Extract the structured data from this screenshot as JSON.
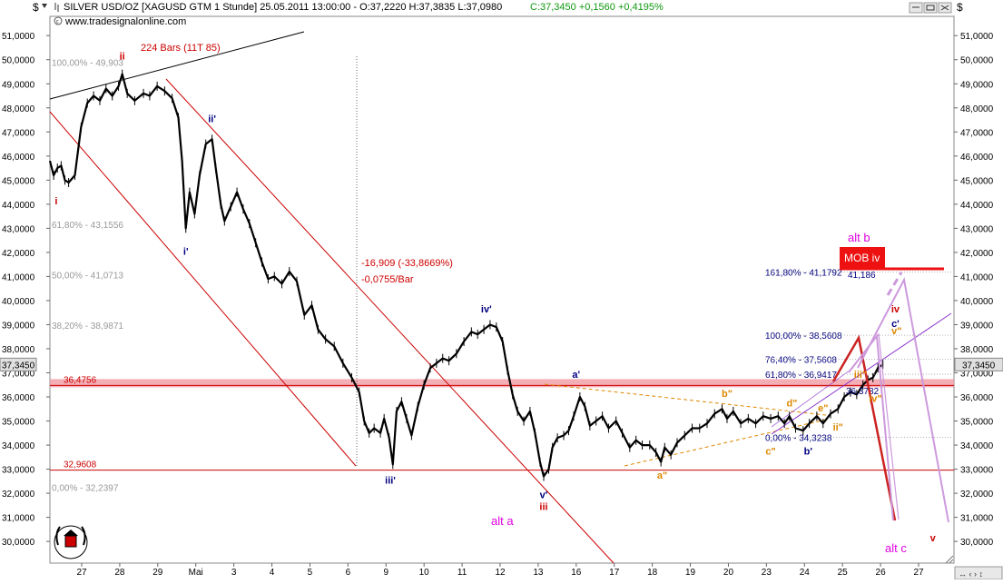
{
  "header": {
    "dollar_left": "$",
    "dollar_right": "$",
    "title": "SILVER USD/OZ [XAGUSD GTM  1 Stunde] 25.05.2011 13:00:00 - O:37,2220 H:37,3835 L:37,0980",
    "close_change": "C:37,3450 +0,1560 +0,4195%",
    "website": "www.tradesignalonline.com"
  },
  "colors": {
    "background": "#ffffff",
    "price": "#000000",
    "channel": "#cc0000",
    "fib": "#999999",
    "support": "#cc0000",
    "highlight_band": "#f2a0a8",
    "orange_wave": "#dd8800",
    "navy_wave": "#000080",
    "magenta": "#dd00dd",
    "violet": "#8833cc",
    "pink_projection": "#cc99dd",
    "mob_box": "#ee1111",
    "price_box_bg": "#e0e0e0"
  },
  "chart_data": {
    "type": "line",
    "y_axis": {
      "range": [
        29.1,
        51.8
      ],
      "ticks": [
        "51,0000",
        "50,0000",
        "49,0000",
        "48,0000",
        "47,0000",
        "46,0000",
        "45,0000",
        "44,0000",
        "43,0000",
        "42,0000",
        "41,0000",
        "40,0000",
        "39,0000",
        "38,0000",
        "37,0000",
        "36,0000",
        "35,0000",
        "34,0000",
        "33,0000",
        "32,0000",
        "31,0000",
        "30,0000"
      ],
      "current_price_label": "37,3450"
    },
    "x_axis": {
      "labels": [
        "27",
        "28",
        "29",
        "Mai",
        "3",
        "4",
        "5",
        "6",
        "9",
        "10",
        "11",
        "12",
        "13",
        "16",
        "17",
        "18",
        "19",
        "20",
        "23",
        "24",
        "25",
        "26",
        "27"
      ]
    },
    "series": [
      {
        "values": [
          [
            0,
            45.8
          ],
          [
            0.3,
            45.2
          ],
          [
            0.6,
            45.5
          ],
          [
            0.9,
            45.6
          ],
          [
            1.2,
            45.0
          ],
          [
            1.5,
            44.9
          ],
          [
            2.0,
            45.2
          ],
          [
            2.5,
            47.2
          ],
          [
            3.0,
            48.2
          ],
          [
            3.5,
            48.5
          ],
          [
            4.0,
            48.3
          ],
          [
            4.5,
            48.8
          ],
          [
            5.0,
            48.5
          ],
          [
            5.5,
            48.9
          ],
          [
            5.8,
            49.4
          ],
          [
            6.2,
            48.6
          ],
          [
            6.8,
            48.3
          ],
          [
            7.5,
            48.6
          ],
          [
            8.0,
            48.5
          ],
          [
            8.6,
            48.9
          ],
          [
            9.2,
            48.7
          ],
          [
            9.8,
            48.4
          ],
          [
            10.3,
            47.6
          ],
          [
            10.6,
            45.8
          ],
          [
            10.9,
            43.0
          ],
          [
            11.2,
            44.5
          ],
          [
            11.6,
            43.6
          ],
          [
            12.0,
            45.2
          ],
          [
            12.5,
            46.5
          ],
          [
            13.0,
            46.7
          ],
          [
            13.3,
            45.5
          ],
          [
            13.7,
            44.0
          ],
          [
            14.0,
            43.3
          ],
          [
            14.5,
            43.9
          ],
          [
            15.0,
            44.5
          ],
          [
            15.5,
            43.8
          ],
          [
            16.0,
            43.2
          ],
          [
            16.5,
            42.4
          ],
          [
            17.0,
            41.6
          ],
          [
            17.5,
            40.9
          ],
          [
            18.0,
            41.0
          ],
          [
            18.6,
            40.7
          ],
          [
            19.2,
            41.2
          ],
          [
            19.8,
            40.8
          ],
          [
            20.4,
            39.4
          ],
          [
            21.0,
            39.8
          ],
          [
            21.5,
            38.8
          ],
          [
            22.1,
            38.4
          ],
          [
            22.8,
            38.1
          ],
          [
            23.5,
            37.4
          ],
          [
            24.2,
            36.8
          ],
          [
            24.8,
            36.2
          ],
          [
            25.2,
            35.0
          ],
          [
            25.6,
            34.5
          ],
          [
            26.0,
            34.7
          ],
          [
            26.5,
            34.5
          ],
          [
            26.8,
            35.1
          ],
          [
            27.2,
            34.3
          ],
          [
            27.5,
            33.2
          ],
          [
            27.8,
            35.4
          ],
          [
            28.2,
            35.8
          ],
          [
            28.6,
            35.1
          ],
          [
            29.0,
            34.4
          ],
          [
            29.5,
            35.6
          ],
          [
            30.0,
            36.5
          ],
          [
            30.5,
            37.2
          ],
          [
            31.0,
            37.4
          ],
          [
            31.5,
            37.6
          ],
          [
            32.0,
            37.5
          ],
          [
            32.6,
            37.8
          ],
          [
            33.2,
            38.3
          ],
          [
            33.8,
            38.7
          ],
          [
            34.3,
            38.6
          ],
          [
            34.8,
            38.8
          ],
          [
            35.3,
            39.0
          ],
          [
            35.8,
            38.9
          ],
          [
            36.3,
            38.3
          ],
          [
            36.7,
            37.1
          ],
          [
            37.1,
            36.1
          ],
          [
            37.5,
            35.4
          ],
          [
            38.0,
            35.0
          ],
          [
            38.5,
            35.4
          ],
          [
            38.9,
            34.5
          ],
          [
            39.3,
            33.3
          ],
          [
            39.6,
            32.7
          ],
          [
            40.0,
            33.0
          ],
          [
            40.3,
            33.9
          ],
          [
            40.7,
            34.3
          ],
          [
            41.2,
            34.4
          ],
          [
            41.6,
            34.6
          ],
          [
            42.0,
            35.2
          ],
          [
            42.5,
            36.0
          ],
          [
            42.9,
            35.6
          ],
          [
            43.3,
            34.8
          ],
          [
            43.8,
            35.0
          ],
          [
            44.3,
            35.2
          ],
          [
            44.8,
            34.7
          ],
          [
            45.4,
            35.0
          ],
          [
            45.9,
            34.5
          ],
          [
            46.5,
            33.9
          ],
          [
            47.0,
            34.2
          ],
          [
            47.5,
            34.0
          ],
          [
            48.1,
            34.0
          ],
          [
            48.6,
            33.7
          ],
          [
            49.0,
            33.3
          ],
          [
            49.3,
            33.9
          ],
          [
            49.8,
            33.6
          ],
          [
            50.3,
            34.1
          ],
          [
            50.9,
            34.4
          ],
          [
            51.5,
            34.7
          ],
          [
            52.1,
            34.7
          ],
          [
            52.7,
            34.9
          ],
          [
            53.3,
            35.3
          ],
          [
            53.9,
            35.5
          ],
          [
            54.3,
            35.1
          ],
          [
            54.8,
            35.4
          ],
          [
            55.4,
            34.9
          ],
          [
            56.0,
            35.1
          ],
          [
            56.6,
            34.9
          ],
          [
            57.2,
            35.2
          ],
          [
            57.8,
            35.1
          ],
          [
            58.4,
            35.2
          ],
          [
            58.9,
            34.9
          ],
          [
            59.3,
            35.2
          ],
          [
            59.8,
            34.7
          ],
          [
            60.4,
            34.6
          ],
          [
            60.9,
            34.9
          ],
          [
            61.5,
            35.2
          ],
          [
            62.0,
            34.9
          ],
          [
            62.6,
            35.3
          ],
          [
            63.2,
            35.5
          ],
          [
            63.7,
            36.0
          ],
          [
            64.2,
            36.2
          ],
          [
            64.7,
            36.1
          ],
          [
            65.2,
            36.5
          ],
          [
            65.6,
            36.7
          ],
          [
            66.0,
            36.8
          ],
          [
            66.4,
            37.2
          ],
          [
            66.8,
            37.35
          ]
        ]
      }
    ],
    "lines": {
      "support_price": "32,9608",
      "resistance_price": "36,4756"
    },
    "fib_left": [
      {
        "label": "100,00% - 49,903",
        "y": 49.903
      },
      {
        "label": "61,80% - 43,1556",
        "y": 43.1556
      },
      {
        "label": "50,00% - 41,0713",
        "y": 41.0713
      },
      {
        "label": "38,20% - 38,9871",
        "y": 38.9871
      },
      {
        "label": "0,00% - 32,2397",
        "y": 32.2397
      }
    ],
    "fib_right": [
      {
        "label": "161,80% - 41,1792",
        "y": 41.1792
      },
      {
        "label": "100,00% - 38,5608",
        "y": 38.5608
      },
      {
        "label": "76,40% - 37,5608",
        "y": 37.5608
      },
      {
        "label": "61,80% - 36,9417",
        "y": 36.9417
      },
      {
        "label": "0,00% - 34,3238",
        "y": 34.3238
      }
    ],
    "annotations": {
      "bars": "224 Bars (11T 85)",
      "change": "-16,909 (-33,8669%)",
      "per_bar": "-0,0755/Bar",
      "mob_value": "41,186",
      "target_3678": "36,3782",
      "mob_box": "MOB iv",
      "alt_b": "alt b",
      "alt_a": "alt a",
      "alt_c": "alt c"
    },
    "wave_labels": [
      {
        "text": "i",
        "t": 0.5,
        "y": 44.0,
        "color": "red"
      },
      {
        "text": "ii",
        "t": 5.8,
        "y": 50.0,
        "color": "red"
      },
      {
        "text": "ii'",
        "t": 13.0,
        "y": 47.4,
        "color": "navy"
      },
      {
        "text": "i'",
        "t": 10.9,
        "y": 41.9,
        "color": "navy"
      },
      {
        "text": "iii'",
        "t": 27.3,
        "y": 32.4,
        "color": "navy"
      },
      {
        "text": "iv'",
        "t": 35.0,
        "y": 39.5,
        "color": "navy"
      },
      {
        "text": "a'",
        "t": 42.2,
        "y": 36.8,
        "color": "navy"
      },
      {
        "text": "v'",
        "t": 39.6,
        "y": 31.8,
        "color": "navy"
      },
      {
        "text": "iii",
        "t": 39.6,
        "y": 31.3,
        "color": "red"
      },
      {
        "text": "a\"",
        "t": 49.1,
        "y": 32.6,
        "color": "orange"
      },
      {
        "text": "b\"",
        "t": 54.3,
        "y": 36.0,
        "color": "orange"
      },
      {
        "text": "c\"",
        "t": 57.8,
        "y": 33.6,
        "color": "orange"
      },
      {
        "text": "d\"",
        "t": 59.5,
        "y": 35.6,
        "color": "orange"
      },
      {
        "text": "b'",
        "t": 60.8,
        "y": 33.6,
        "color": "navy"
      },
      {
        "text": "e\"",
        "t": 62.0,
        "y": 35.4,
        "color": "orange"
      },
      {
        "text": "ii\"",
        "t": 63.2,
        "y": 34.6,
        "color": "orange"
      },
      {
        "text": "iii\"",
        "t": 65.0,
        "y": 36.8,
        "color": "orange"
      },
      {
        "text": "iv\"",
        "t": 66.2,
        "y": 35.8,
        "color": "orange"
      },
      {
        "text": "c'",
        "t": 67.8,
        "y": 38.9,
        "color": "navy"
      },
      {
        "text": "v\"",
        "t": 67.9,
        "y": 38.6,
        "color": "orange"
      },
      {
        "text": "iv",
        "t": 67.8,
        "y": 39.5,
        "color": "red"
      },
      {
        "text": "v",
        "t": 70.8,
        "y": 30.0,
        "color": "red"
      }
    ]
  }
}
